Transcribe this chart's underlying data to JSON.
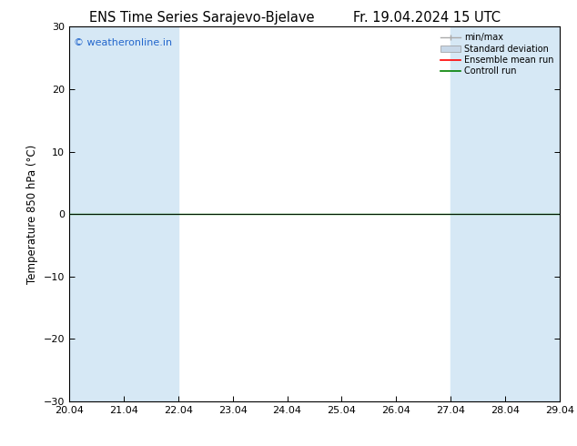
{
  "title_left": "ENS Time Series Sarajevo-Bjelave",
  "title_right": "Fr. 19.04.2024 15 UTC",
  "ylabel": "Temperature 850 hPa (°C)",
  "ylim": [
    -30,
    30
  ],
  "yticks": [
    -30,
    -20,
    -10,
    0,
    10,
    20,
    30
  ],
  "xlim_start": 0,
  "xlim_end": 9,
  "xtick_positions": [
    0,
    1,
    2,
    3,
    4,
    5,
    6,
    7,
    8,
    9
  ],
  "xtick_labels": [
    "20.04",
    "21.04",
    "22.04",
    "23.04",
    "24.04",
    "25.04",
    "26.04",
    "27.04",
    "28.04",
    "29.04"
  ],
  "shaded_columns": [
    {
      "x_start": 0.0,
      "x_end": 1.0
    },
    {
      "x_start": 1.0,
      "x_end": 2.0
    },
    {
      "x_start": 7.0,
      "x_end": 8.0
    },
    {
      "x_start": 8.0,
      "x_end": 9.0
    }
  ],
  "shade_color": "#d6e8f5",
  "legend_labels": [
    "min/max",
    "Standard deviation",
    "Ensemble mean run",
    "Controll run"
  ],
  "legend_colors": [
    "#999999",
    "#bbccdd",
    "#ff0000",
    "#008000"
  ],
  "copyright_text": "© weatheronline.in",
  "copyright_color": "#2266cc",
  "background_color": "#ffffff",
  "green_line_color": "#008000",
  "black_line_color": "#000000",
  "title_fontsize": 10.5,
  "axis_fontsize": 8.5,
  "tick_fontsize": 8
}
